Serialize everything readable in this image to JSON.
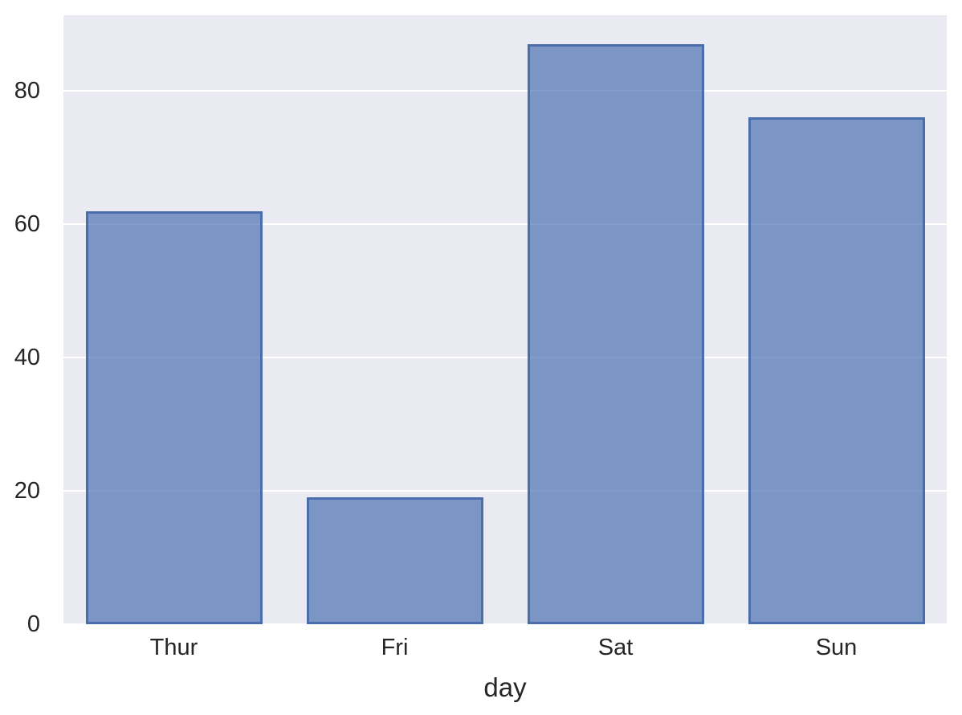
{
  "chart_data": {
    "type": "bar",
    "title": "",
    "categories": [
      "Thur",
      "Fri",
      "Sat",
      "Sun"
    ],
    "values": [
      62,
      19,
      87,
      76
    ],
    "xlabel": "day",
    "ylabel": "",
    "ylim": [
      0,
      91.35
    ],
    "yticks": [
      0,
      20,
      40,
      60,
      80
    ],
    "grid": true,
    "legend_position": "none",
    "bar_width_fraction": 0.8,
    "colors": {
      "bar_fill": "rgba(76,114,176,0.7)",
      "bar_edge": "#4a6dad",
      "plot_background": "#eaeaf2",
      "figure_background": "#ffffff",
      "grid_color": "#ffffff",
      "text_color": "#262626"
    }
  }
}
